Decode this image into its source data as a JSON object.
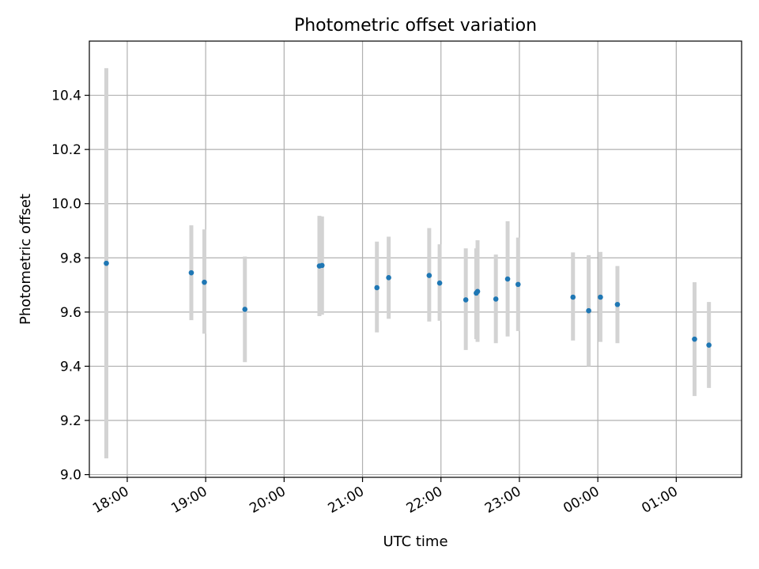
{
  "chart_data": {
    "type": "scatter",
    "title": "Photometric offset variation",
    "xlabel": "UTC time",
    "ylabel": "Photometric offset",
    "xlim": [
      "17:31",
      "01:50"
    ],
    "ylim": [
      8.99,
      10.6
    ],
    "grid": true,
    "x_ticks": [
      "18:00",
      "19:00",
      "20:00",
      "21:00",
      "22:00",
      "23:00",
      "00:00",
      "01:00"
    ],
    "y_ticks": [
      "9.0",
      "9.2",
      "9.4",
      "9.6",
      "9.8",
      "10.0",
      "10.2",
      "10.4"
    ],
    "errorbar_color": "#d3d3d3",
    "point_color": "#1f77b4",
    "series": [
      {
        "points": [
          {
            "x": "17:44",
            "y": 9.78,
            "ylow": 9.06,
            "yhigh": 10.5
          },
          {
            "x": "18:49",
            "y": 9.745,
            "ylow": 9.57,
            "yhigh": 9.92
          },
          {
            "x": "18:59",
            "y": 9.71,
            "ylow": 9.52,
            "yhigh": 9.905
          },
          {
            "x": "19:30",
            "y": 9.61,
            "ylow": 9.415,
            "yhigh": 9.805
          },
          {
            "x": "20:27",
            "y": 9.77,
            "ylow": 9.585,
            "yhigh": 9.955
          },
          {
            "x": "20:29",
            "y": 9.772,
            "ylow": 9.59,
            "yhigh": 9.953
          },
          {
            "x": "21:11",
            "y": 9.69,
            "ylow": 9.525,
            "yhigh": 9.86
          },
          {
            "x": "21:20",
            "y": 9.727,
            "ylow": 9.575,
            "yhigh": 9.878
          },
          {
            "x": "21:51",
            "y": 9.735,
            "ylow": 9.565,
            "yhigh": 9.91
          },
          {
            "x": "21:59",
            "y": 9.707,
            "ylow": 9.568,
            "yhigh": 9.85
          },
          {
            "x": "22:19",
            "y": 9.645,
            "ylow": 9.46,
            "yhigh": 9.835
          },
          {
            "x": "22:27",
            "y": 9.67,
            "ylow": 9.5,
            "yhigh": 9.835
          },
          {
            "x": "22:28",
            "y": 9.676,
            "ylow": 9.49,
            "yhigh": 9.865
          },
          {
            "x": "22:42",
            "y": 9.648,
            "ylow": 9.485,
            "yhigh": 9.812
          },
          {
            "x": "22:51",
            "y": 9.722,
            "ylow": 9.51,
            "yhigh": 9.935
          },
          {
            "x": "22:59",
            "y": 9.702,
            "ylow": 9.53,
            "yhigh": 9.875
          },
          {
            "x": "23:41",
            "y": 9.655,
            "ylow": 9.495,
            "yhigh": 9.82
          },
          {
            "x": "23:53",
            "y": 9.605,
            "ylow": 9.4,
            "yhigh": 9.81
          },
          {
            "x": "00:02",
            "y": 9.655,
            "ylow": 9.49,
            "yhigh": 9.822
          },
          {
            "x": "00:15",
            "y": 9.628,
            "ylow": 9.485,
            "yhigh": 9.77
          },
          {
            "x": "01:14",
            "y": 9.5,
            "ylow": 9.29,
            "yhigh": 9.71
          },
          {
            "x": "01:25",
            "y": 9.478,
            "ylow": 9.32,
            "yhigh": 9.637
          }
        ]
      }
    ]
  }
}
